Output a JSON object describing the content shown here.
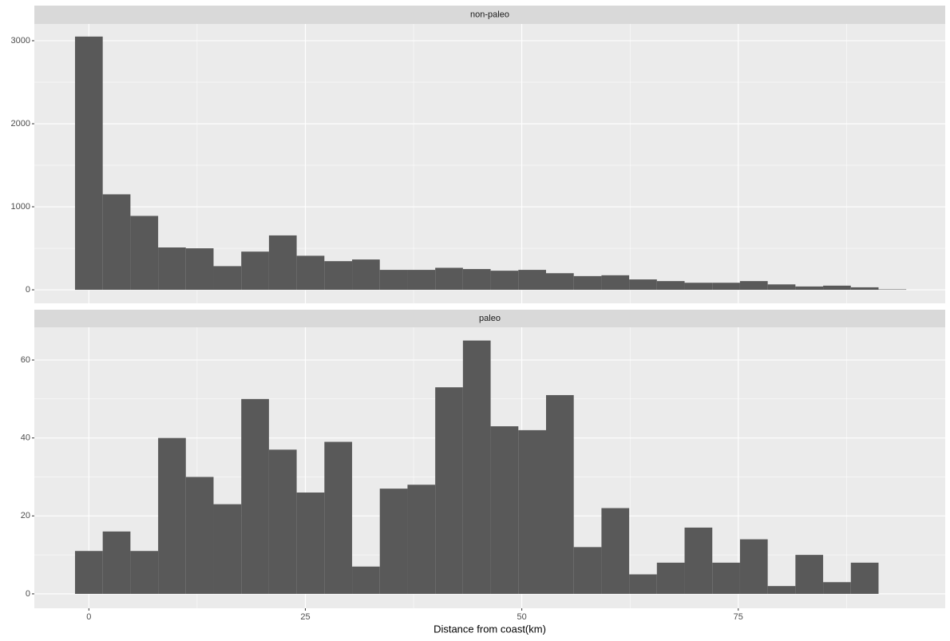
{
  "chart_data": [
    {
      "type": "histogram",
      "title": "non-paleo",
      "bins": [
        -1.6,
        1.6,
        4.8,
        8.0,
        11.2,
        14.4,
        17.6,
        20.8,
        24.0,
        27.2,
        30.4,
        33.6,
        36.8,
        40.0,
        43.2,
        46.4,
        49.6,
        52.8,
        56.0,
        59.2,
        62.4,
        65.6,
        68.8,
        72.0,
        75.2,
        78.4,
        81.6,
        84.8,
        88.0,
        91.2,
        94.4
      ],
      "counts": [
        3050,
        1150,
        890,
        510,
        500,
        285,
        460,
        655,
        410,
        345,
        365,
        240,
        240,
        265,
        250,
        230,
        240,
        200,
        165,
        175,
        125,
        105,
        85,
        85,
        105,
        65,
        40,
        50,
        30,
        5
      ],
      "color": "#595959",
      "xlim": [
        -6.3,
        98.9
      ],
      "xticks": [
        0,
        25,
        50,
        75
      ],
      "ylim": [
        -163,
        3202
      ],
      "yticks": [
        0,
        1000,
        2000,
        3000
      ],
      "grid": true
    },
    {
      "type": "histogram",
      "title": "paleo",
      "xlabel": "Distance from coast(km)",
      "bins": [
        -1.6,
        1.6,
        4.8,
        8.0,
        11.2,
        14.4,
        17.6,
        20.8,
        24.0,
        27.2,
        30.4,
        33.6,
        36.8,
        40.0,
        43.2,
        46.4,
        49.6,
        52.8,
        56.0,
        59.2,
        62.4,
        65.6,
        68.8,
        72.0,
        75.2,
        78.4,
        81.6,
        84.8,
        88.0,
        91.2,
        94.4
      ],
      "counts": [
        11,
        16,
        11,
        40,
        30,
        23,
        50,
        37,
        26,
        39,
        7,
        27,
        28,
        53,
        65,
        43,
        42,
        51,
        12,
        22,
        5,
        8,
        17,
        8,
        14,
        2,
        10,
        3,
        8,
        0
      ],
      "color": "#595959",
      "xlim": [
        -6.3,
        98.9
      ],
      "xticks": [
        0,
        25,
        50,
        75
      ],
      "ylim": [
        -3.7,
        68.4
      ],
      "yticks": [
        0,
        20,
        40,
        60
      ],
      "grid": true
    }
  ]
}
